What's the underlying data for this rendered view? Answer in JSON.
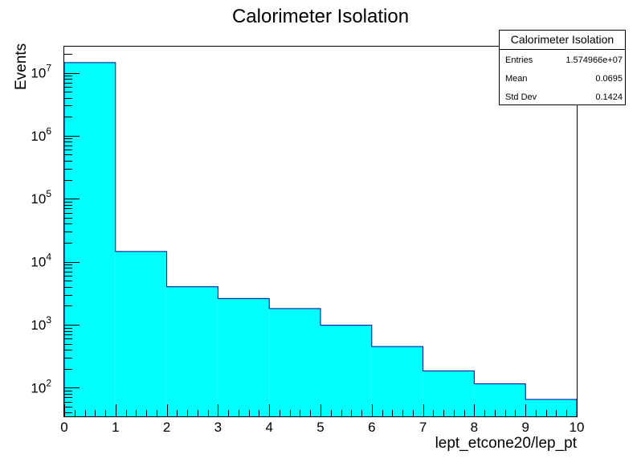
{
  "chart_data": {
    "type": "bar",
    "title": "Calorimeter Isolation",
    "xlabel": "lept_etcone20/lep_pt",
    "ylabel": "Events",
    "x": {
      "range": [
        0,
        10
      ],
      "ticks": [
        "0",
        "1",
        "2",
        "3",
        "4",
        "5",
        "6",
        "7",
        "8",
        "9",
        "10"
      ]
    },
    "y": {
      "scale": "log",
      "range": [
        35,
        26000000
      ],
      "ticks": [
        {
          "value": 100,
          "base": "10",
          "exp": "2"
        },
        {
          "value": 1000,
          "base": "10",
          "exp": "3"
        },
        {
          "value": 10000,
          "base": "10",
          "exp": "4"
        },
        {
          "value": 100000,
          "base": "10",
          "exp": "5"
        },
        {
          "value": 1000000,
          "base": "10",
          "exp": "6"
        },
        {
          "value": 10000000,
          "base": "10",
          "exp": "7"
        }
      ]
    },
    "bins": [
      {
        "low": 0,
        "high": 1,
        "value": 14500000
      },
      {
        "low": 1,
        "high": 2,
        "value": 14500
      },
      {
        "low": 2,
        "high": 3,
        "value": 4000
      },
      {
        "low": 3,
        "high": 4,
        "value": 2600
      },
      {
        "low": 4,
        "high": 5,
        "value": 1800
      },
      {
        "low": 5,
        "high": 6,
        "value": 980
      },
      {
        "low": 6,
        "high": 7,
        "value": 450
      },
      {
        "low": 7,
        "high": 8,
        "value": 185
      },
      {
        "low": 8,
        "high": 9,
        "value": 115
      },
      {
        "low": 9,
        "high": 10,
        "value": 65
      }
    ],
    "fill_color": "#00ffff",
    "line_color": "#000099",
    "grid": false,
    "stats_box": {
      "placement": "top-right",
      "title": "Calorimeter Isolation",
      "rows": [
        {
          "label": "Entries",
          "value": "1.574966e+07"
        },
        {
          "label": "Mean",
          "value": "0.0695"
        },
        {
          "label": "Std Dev",
          "value": "0.1424"
        }
      ]
    }
  }
}
